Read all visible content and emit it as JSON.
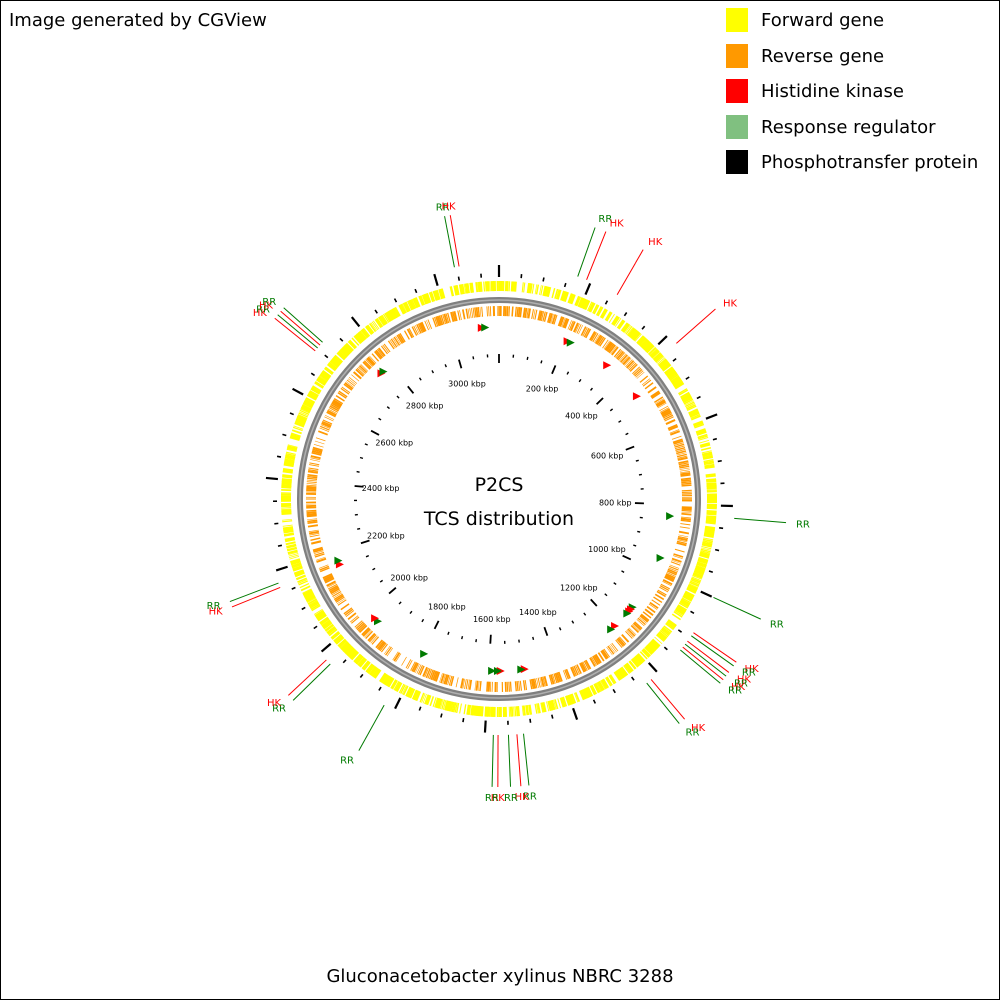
{
  "credit": "Image generated by CGView",
  "organism": "Gluconacetobacter xylinus NBRC 3288",
  "center": {
    "line1": "P2CS",
    "line2": "TCS distribution"
  },
  "colors": {
    "forward": "#ffff00",
    "reverse": "#ff9900",
    "hk": "#ff0000",
    "rr": "#007a00",
    "rr_legend": "#80c080",
    "phospho": "#000000",
    "backbone": "#808080"
  },
  "legend": [
    {
      "label": "Forward gene",
      "color": "#ffff00",
      "icon": "yellow-square"
    },
    {
      "label": "Reverse gene",
      "color": "#ff9900",
      "icon": "orange-square"
    },
    {
      "label": "Histidine kinase",
      "color": "#ff0000",
      "icon": "red-square"
    },
    {
      "label": "Response regulator",
      "color": "#80c080",
      "icon": "green-square"
    },
    {
      "label": "Phosphotransfer protein",
      "color": "#000000",
      "icon": "black-square"
    }
  ],
  "map": {
    "genome_length_kbp": 3140,
    "tick_labels": [
      "200 kbp",
      "400 kbp",
      "600 kbp",
      "800 kbp",
      "1000 kbp",
      "1200 kbp",
      "1400 kbp",
      "1600 kbp",
      "1800 kbp",
      "2000 kbp",
      "2200 kbp",
      "2400 kbp",
      "2600 kbp",
      "2800 kbp",
      "3000 kbp"
    ],
    "tick_positions_kbp": [
      200,
      400,
      600,
      800,
      1000,
      1200,
      1400,
      1600,
      1800,
      2000,
      2200,
      2400,
      2600,
      2800,
      3000
    ],
    "sites": [
      {
        "type": "RR",
        "position_kbp": 3045
      },
      {
        "type": "HK",
        "position_kbp": 3055
      },
      {
        "type": "RR",
        "position_kbp": 170
      },
      {
        "type": "HK",
        "position_kbp": 190
      },
      {
        "type": "HK",
        "position_kbp": 262
      },
      {
        "type": "HK",
        "position_kbp": 425
      },
      {
        "type": "RR",
        "position_kbp": 826
      },
      {
        "type": "RR",
        "position_kbp": 1000
      },
      {
        "type": "HK",
        "position_kbp": 1086
      },
      {
        "type": "RR",
        "position_kbp": 1094
      },
      {
        "type": "HK",
        "position_kbp": 1108
      },
      {
        "type": "RR",
        "position_kbp": 1116
      },
      {
        "type": "HK",
        "position_kbp": 1124
      },
      {
        "type": "RR",
        "position_kbp": 1132
      },
      {
        "type": "HK",
        "position_kbp": 1220
      },
      {
        "type": "RR",
        "position_kbp": 1232
      },
      {
        "type": "RR",
        "position_kbp": 1518
      },
      {
        "type": "HK",
        "position_kbp": 1532
      },
      {
        "type": "RR",
        "position_kbp": 1550
      },
      {
        "type": "HK",
        "position_kbp": 1572
      },
      {
        "type": "RR",
        "position_kbp": 1582
      },
      {
        "type": "RR",
        "position_kbp": 1824
      },
      {
        "type": "RR",
        "position_kbp": 1968
      },
      {
        "type": "HK",
        "position_kbp": 1980
      },
      {
        "type": "HK",
        "position_kbp": 2163
      },
      {
        "type": "RR",
        "position_kbp": 2173
      },
      {
        "type": "HK",
        "position_kbp": 2694
      },
      {
        "type": "RR",
        "position_kbp": 2702
      },
      {
        "type": "HK",
        "position_kbp": 2710
      },
      {
        "type": "RR",
        "position_kbp": 2718
      }
    ],
    "inner_markers": [
      {
        "type": "HK",
        "position_kbp": 3090
      },
      {
        "type": "RR",
        "position_kbp": 3100
      },
      {
        "type": "HK",
        "position_kbp": 205
      },
      {
        "type": "RR",
        "position_kbp": 215
      },
      {
        "type": "HK",
        "position_kbp": 340
      },
      {
        "type": "HK",
        "position_kbp": 465
      },
      {
        "type": "RR",
        "position_kbp": 835
      },
      {
        "type": "RR",
        "position_kbp": 960
      },
      {
        "type": "RR",
        "position_kbp": 1125
      },
      {
        "type": "HK",
        "position_kbp": 1133
      },
      {
        "type": "HK",
        "position_kbp": 1141
      },
      {
        "type": "RR",
        "position_kbp": 1149
      },
      {
        "type": "HK",
        "position_kbp": 1200
      },
      {
        "type": "RR",
        "position_kbp": 1215
      },
      {
        "type": "HK",
        "position_kbp": 1495
      },
      {
        "type": "RR",
        "position_kbp": 1505
      },
      {
        "type": "HK",
        "position_kbp": 1565
      },
      {
        "type": "RR",
        "position_kbp": 1573
      },
      {
        "type": "RR",
        "position_kbp": 1590
      },
      {
        "type": "RR",
        "position_kbp": 1795
      },
      {
        "type": "RR",
        "position_kbp": 1960
      },
      {
        "type": "HK",
        "position_kbp": 1972
      },
      {
        "type": "HK",
        "position_kbp": 2160
      },
      {
        "type": "RR",
        "position_kbp": 2172
      },
      {
        "type": "HK",
        "position_kbp": 2764
      },
      {
        "type": "RR",
        "position_kbp": 2772
      }
    ]
  }
}
